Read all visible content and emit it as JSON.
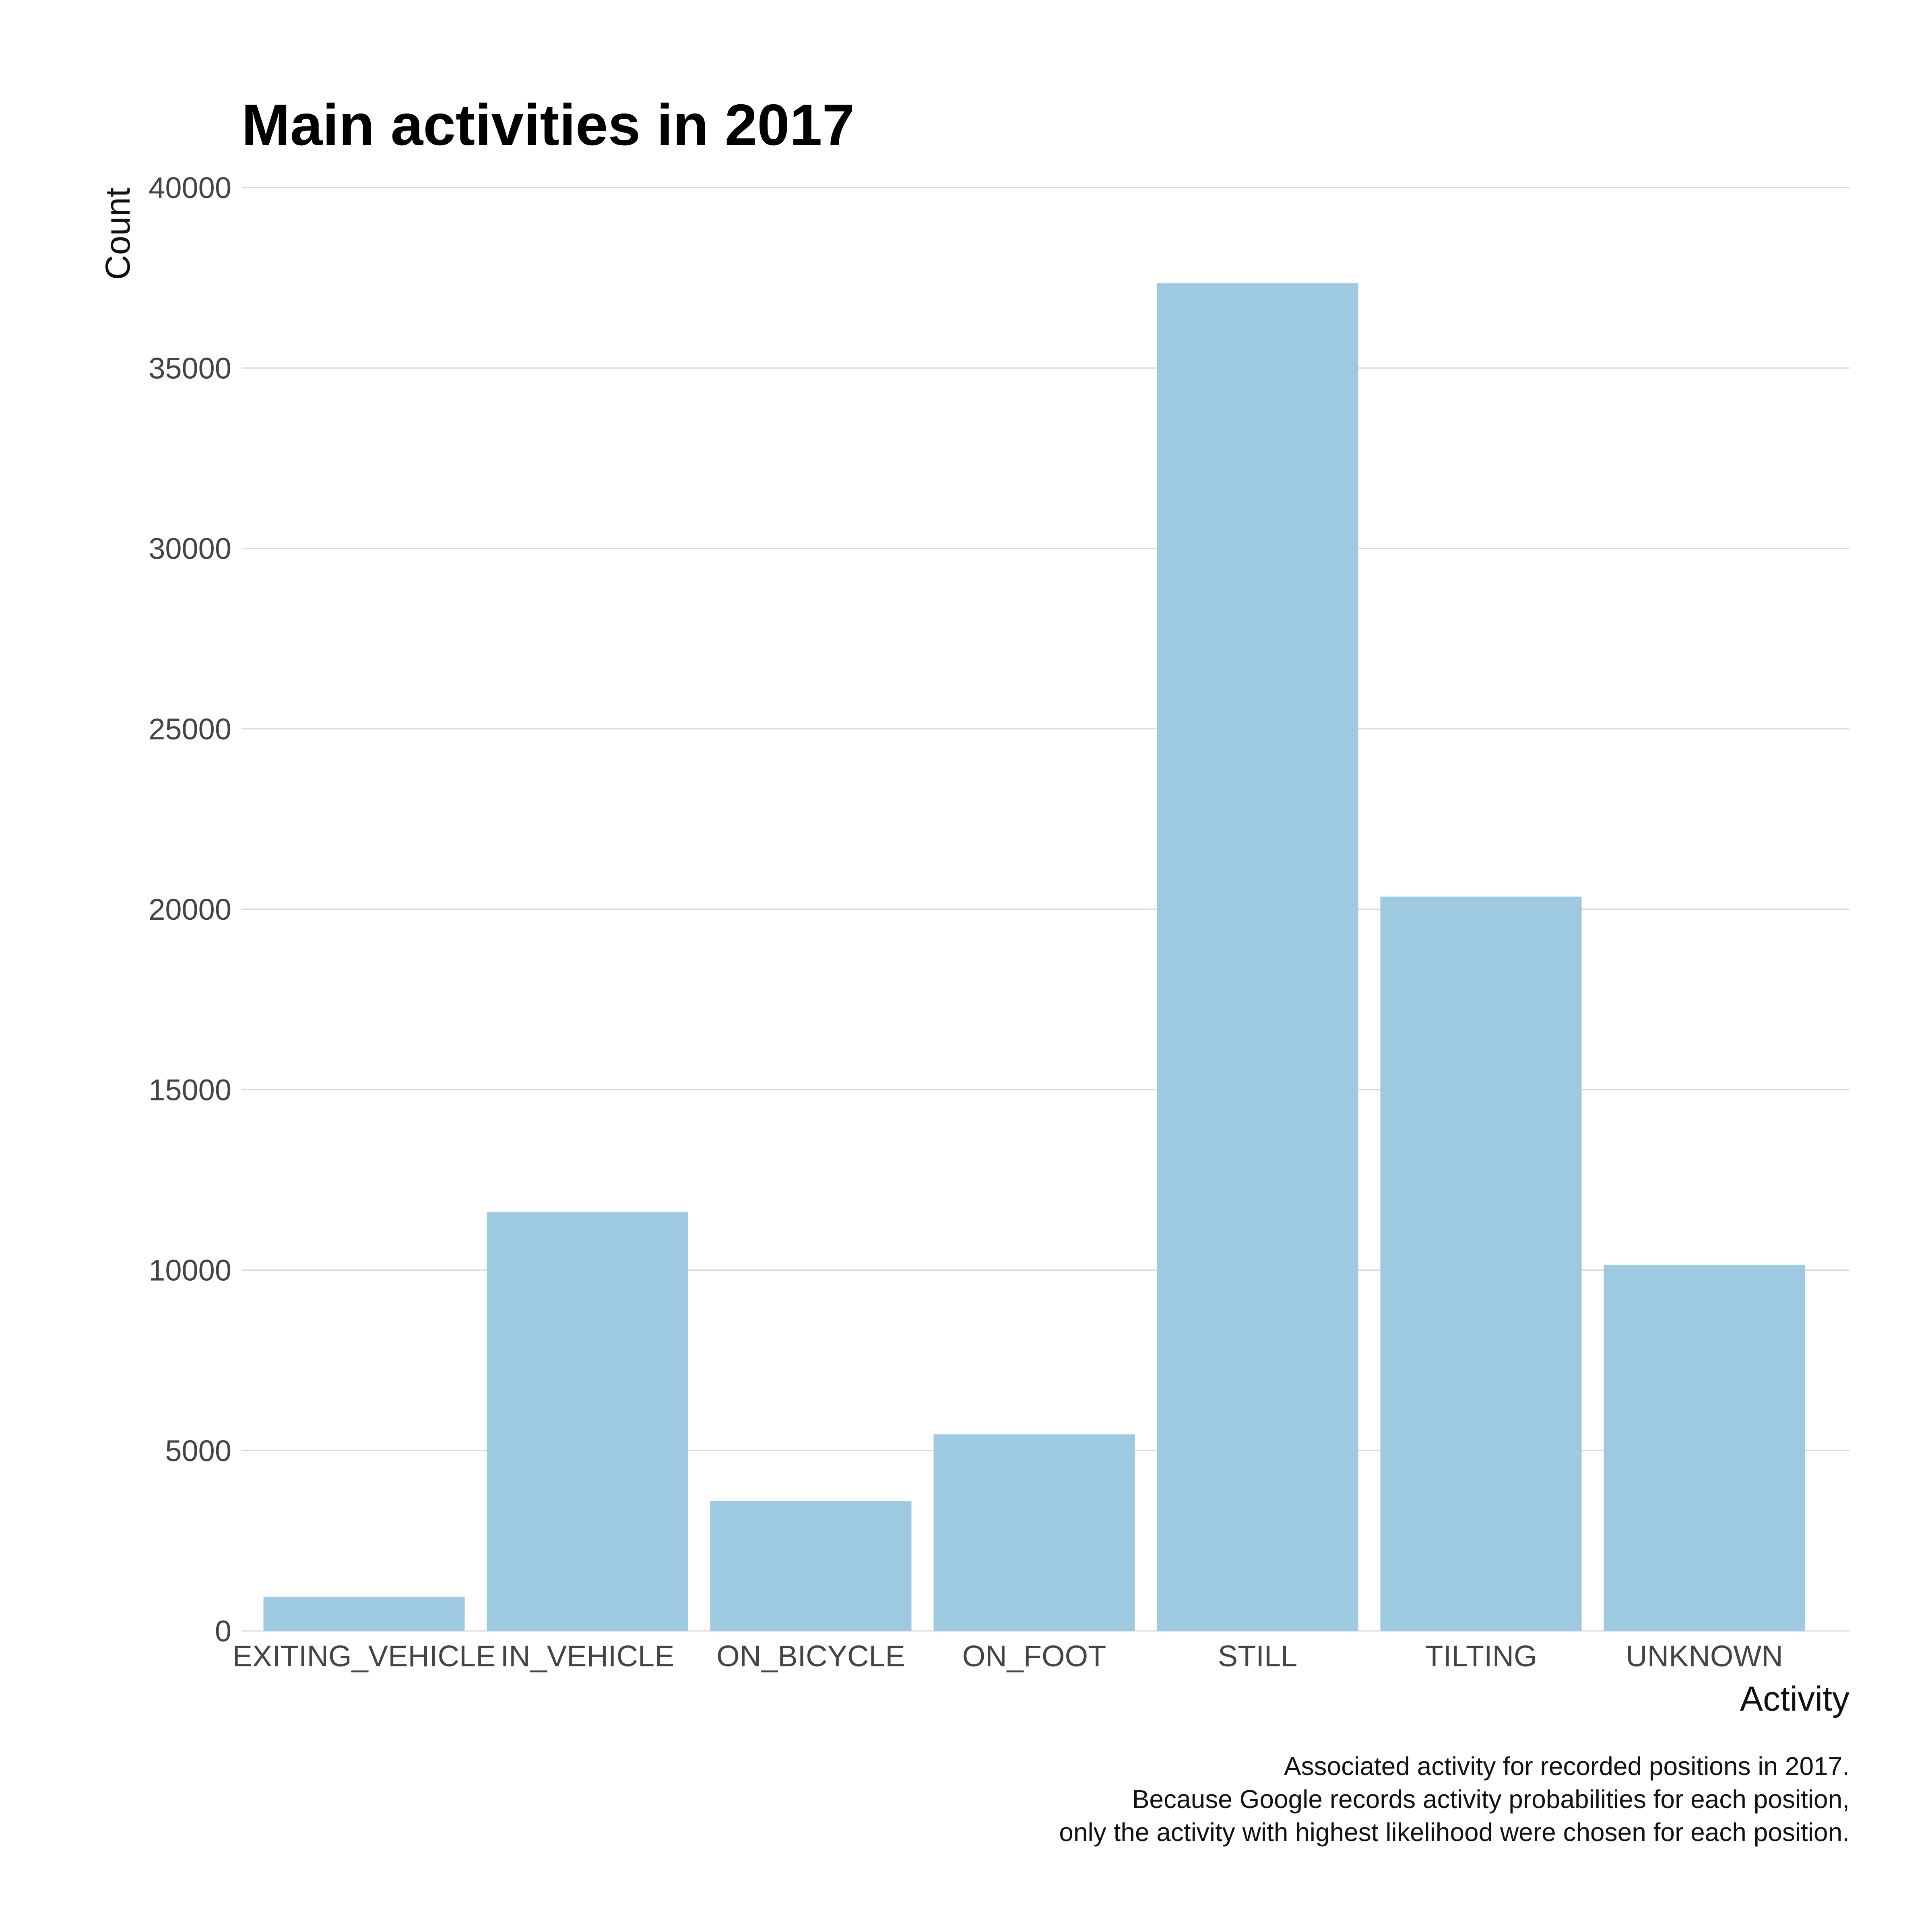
{
  "chart_data": {
    "type": "bar",
    "title": "Main activities in 2017",
    "xlabel": "Activity",
    "ylabel": "Count",
    "categories": [
      "EXITING_VEHICLE",
      "IN_VEHICLE",
      "ON_BICYCLE",
      "ON_FOOT",
      "STILL",
      "TILTING",
      "UNKNOWN"
    ],
    "values": [
      950,
      11600,
      3600,
      5450,
      37350,
      20350,
      10150
    ],
    "ylim": [
      0,
      40000
    ],
    "yticks": [
      0,
      5000,
      10000,
      15000,
      20000,
      25000,
      30000,
      35000,
      40000
    ],
    "ytick_labels": [
      "0",
      "5000",
      "10000",
      "15000",
      "20000",
      "25000",
      "30000",
      "35000",
      "40000"
    ],
    "grid": "horizontal",
    "legend": "none",
    "bar_color": "#9ecae1",
    "caption": [
      "Associated activity for recorded positions in 2017.",
      "Because Google records activity probabilities for each position,",
      "only the activity with highest likelihood were chosen for each position."
    ]
  }
}
